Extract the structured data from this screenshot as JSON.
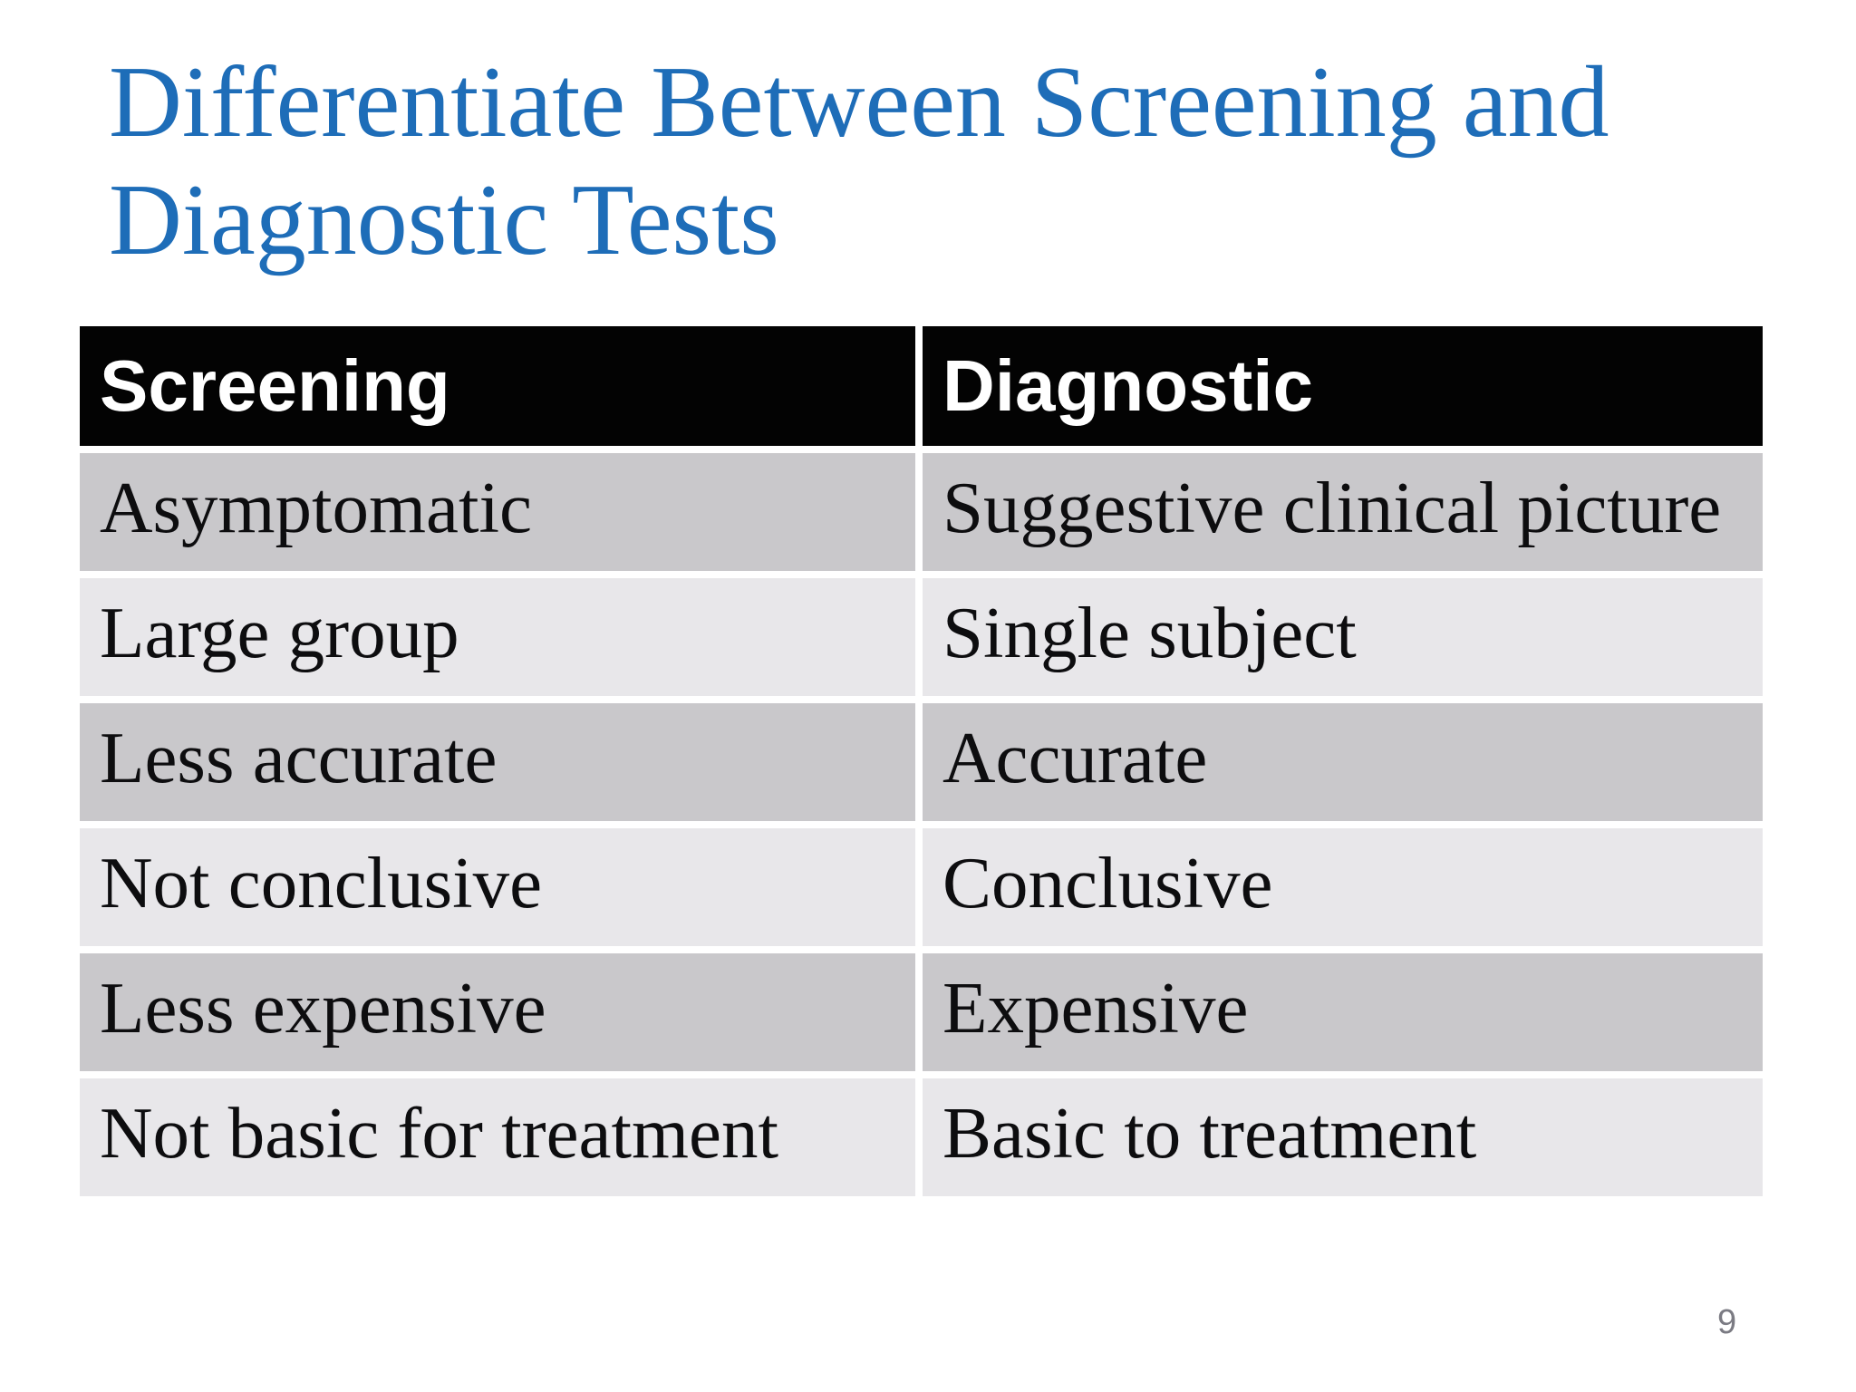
{
  "slide": {
    "title": "Differentiate Between Screening and\nDiagnostic Tests",
    "page_number": "9"
  },
  "table": {
    "headers": [
      "Screening",
      "Diagnostic"
    ],
    "rows": [
      [
        "Asymptomatic",
        "Suggestive clinical picture"
      ],
      [
        "Large group",
        "Single subject"
      ],
      [
        "Less accurate",
        "Accurate"
      ],
      [
        "Not conclusive",
        "Conclusive"
      ],
      [
        "Less expensive",
        "Expensive"
      ],
      [
        "Not basic for treatment",
        "Basic to treatment"
      ]
    ]
  },
  "colors": {
    "title_blue": "#1E6DB8",
    "header_bg": "#030303",
    "header_text": "#FFFFFF",
    "row_dark": "#C9C8CB",
    "row_light": "#E8E7EA",
    "body_text": "#0D0D0F",
    "page_number_gray": "#7B7B83"
  }
}
